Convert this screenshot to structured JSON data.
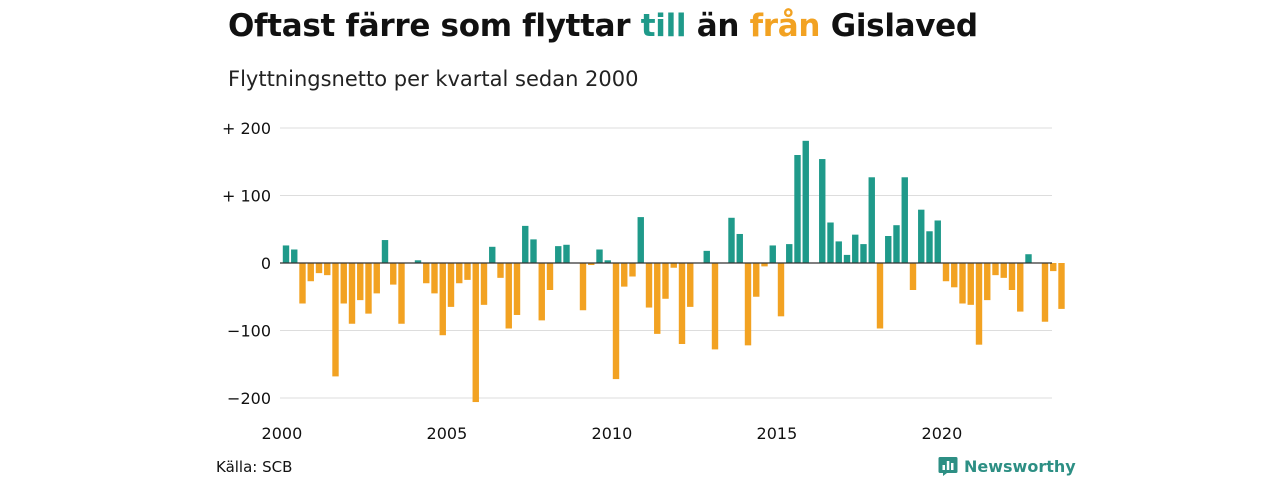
{
  "header": {
    "title_parts": [
      "Oftast färre som flyttar ",
      "till",
      " än ",
      "från",
      " Gislaved"
    ],
    "subtitle": "Flyttningsnetto per kvartal sedan 2000"
  },
  "footer": {
    "source": "Källa: SCB",
    "brand": "Newsworthy",
    "brand_icon": "bar-chart-icon"
  },
  "colors": {
    "positive": "#1f9a8a",
    "negative": "#f2a222",
    "grid": "#dddddd",
    "axis": "#333333",
    "brand": "#2d8f84"
  },
  "chart_data": {
    "type": "bar",
    "title": "Oftast färre som flyttar till än från Gislaved",
    "subtitle": "Flyttningsnetto per kvartal sedan 2000",
    "xlabel": "",
    "ylabel": "",
    "x_start": "2000 Q1",
    "x_ticks": [
      "2000",
      "2005",
      "2010",
      "2015",
      "2020"
    ],
    "ylim": [
      -200,
      200
    ],
    "y_ticks": [
      200,
      100,
      0,
      -100,
      -200
    ],
    "y_tick_labels": [
      "+ 200",
      "+ 100",
      "0",
      "−100",
      "−200"
    ],
    "grid": true,
    "values": [
      26,
      20,
      -60,
      -27,
      -15,
      -18,
      -168,
      -60,
      -90,
      -55,
      -75,
      -45,
      34,
      -32,
      -90,
      0,
      4,
      -30,
      -45,
      -107,
      -65,
      -30,
      -25,
      -206,
      -62,
      24,
      -22,
      -97,
      -77,
      55,
      35,
      -85,
      -40,
      25,
      27,
      0,
      -70,
      -3,
      20,
      4,
      -172,
      -35,
      -20,
      68,
      -66,
      -105,
      -53,
      -7,
      -120,
      -65,
      0,
      18,
      -128,
      0,
      67,
      43,
      -122,
      -50,
      -5,
      26,
      -79,
      28,
      160,
      181,
      0,
      154,
      60,
      32,
      12,
      42,
      28,
      127,
      -97,
      40,
      56,
      127,
      -40,
      79,
      47,
      63,
      -27,
      -36,
      -60,
      -62,
      -121,
      -55,
      -18,
      -22,
      -40,
      -72,
      13,
      0,
      -87,
      -12,
      -68
    ]
  }
}
